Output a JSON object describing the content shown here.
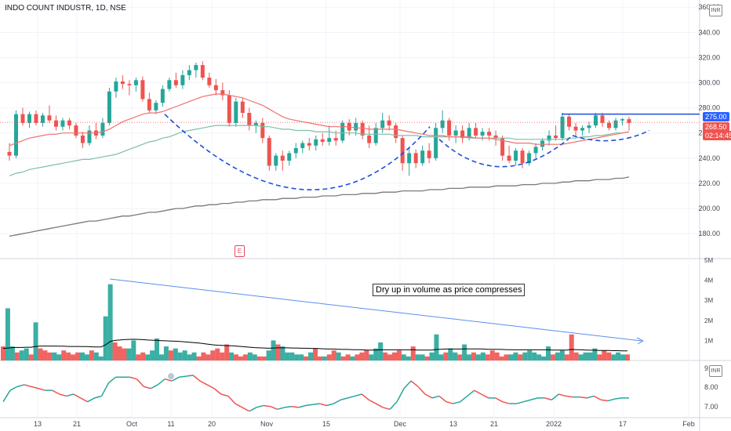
{
  "header": {
    "symbol_line": "INDO COUNT INDUSTR, 1D, NSE"
  },
  "currency_tag": "INR",
  "events": {
    "earnings_badge": "E"
  },
  "annotations": {
    "volume_note": "Dry up in volume as price compresses"
  },
  "price_tags": {
    "resistance": "275.00",
    "last_price": "268.50",
    "countdown": "02:14:45"
  },
  "colors": {
    "up": "#26a69a",
    "down": "#ef5350",
    "ma_short": "#f07171",
    "ma_mid": "#7cc0a6",
    "ma_long": "#7a7a7a",
    "pattern_line": "#1e4fd8",
    "resistance_line": "#1e4fd8",
    "volume_trend": "#5b8def",
    "indicator_line_up": "#26a69a",
    "indicator_line_down": "#ef5350",
    "axis_text": "#434651",
    "grid": "#f0f3fa"
  },
  "chart_data": {
    "type": "candlestick",
    "x_ticks": [
      "13",
      "21",
      "Oct",
      "11",
      "20",
      "Nov",
      "15",
      "Dec",
      "13",
      "21",
      "2022",
      "17",
      "Feb"
    ],
    "price_axis": {
      "ticks": [
        "360.00",
        "340.00",
        "320.00",
        "300.00",
        "280.00",
        "260.00",
        "240.00",
        "220.00",
        "200.00",
        "180.00"
      ],
      "ylim": [
        172,
        362
      ]
    },
    "volume_axis": {
      "ticks": [
        "5M",
        "4M",
        "3M",
        "2M",
        "1M"
      ],
      "ylim": [
        0,
        5000000
      ]
    },
    "indicator_axis": {
      "ticks": [
        "9.",
        "8.00",
        "7.00"
      ],
      "ylim": [
        6.6,
        9.05
      ]
    },
    "resistance_level": 275.0,
    "last_price": 268.5,
    "candles": [
      {
        "o": 245,
        "h": 252,
        "l": 238,
        "c": 242
      },
      {
        "o": 242,
        "h": 278,
        "l": 240,
        "c": 275
      },
      {
        "o": 275,
        "h": 280,
        "l": 266,
        "c": 268
      },
      {
        "o": 268,
        "h": 277,
        "l": 264,
        "c": 275
      },
      {
        "o": 275,
        "h": 278,
        "l": 266,
        "c": 268
      },
      {
        "o": 268,
        "h": 276,
        "l": 265,
        "c": 274
      },
      {
        "o": 274,
        "h": 282,
        "l": 268,
        "c": 270
      },
      {
        "o": 270,
        "h": 274,
        "l": 262,
        "c": 265
      },
      {
        "o": 265,
        "h": 272,
        "l": 262,
        "c": 270
      },
      {
        "o": 270,
        "h": 272,
        "l": 263,
        "c": 266
      },
      {
        "o": 266,
        "h": 268,
        "l": 256,
        "c": 258
      },
      {
        "o": 258,
        "h": 261,
        "l": 248,
        "c": 252
      },
      {
        "o": 252,
        "h": 266,
        "l": 250,
        "c": 262
      },
      {
        "o": 262,
        "h": 268,
        "l": 255,
        "c": 258
      },
      {
        "o": 258,
        "h": 272,
        "l": 256,
        "c": 268
      },
      {
        "o": 268,
        "h": 296,
        "l": 266,
        "c": 293
      },
      {
        "o": 293,
        "h": 304,
        "l": 288,
        "c": 301
      },
      {
        "o": 301,
        "h": 306,
        "l": 295,
        "c": 299
      },
      {
        "o": 299,
        "h": 302,
        "l": 290,
        "c": 298
      },
      {
        "o": 298,
        "h": 304,
        "l": 293,
        "c": 302
      },
      {
        "o": 302,
        "h": 305,
        "l": 285,
        "c": 287
      },
      {
        "o": 287,
        "h": 292,
        "l": 276,
        "c": 278
      },
      {
        "o": 278,
        "h": 286,
        "l": 275,
        "c": 284
      },
      {
        "o": 284,
        "h": 298,
        "l": 281,
        "c": 295
      },
      {
        "o": 295,
        "h": 304,
        "l": 293,
        "c": 302
      },
      {
        "o": 302,
        "h": 308,
        "l": 296,
        "c": 298
      },
      {
        "o": 298,
        "h": 310,
        "l": 295,
        "c": 306
      },
      {
        "o": 306,
        "h": 314,
        "l": 302,
        "c": 310
      },
      {
        "o": 310,
        "h": 316,
        "l": 304,
        "c": 314
      },
      {
        "o": 314,
        "h": 317,
        "l": 302,
        "c": 304
      },
      {
        "o": 304,
        "h": 308,
        "l": 296,
        "c": 298
      },
      {
        "o": 298,
        "h": 303,
        "l": 290,
        "c": 294
      },
      {
        "o": 294,
        "h": 300,
        "l": 286,
        "c": 290
      },
      {
        "o": 290,
        "h": 294,
        "l": 265,
        "c": 268
      },
      {
        "o": 268,
        "h": 288,
        "l": 265,
        "c": 285
      },
      {
        "o": 285,
        "h": 288,
        "l": 272,
        "c": 276
      },
      {
        "o": 276,
        "h": 280,
        "l": 262,
        "c": 266
      },
      {
        "o": 266,
        "h": 270,
        "l": 260,
        "c": 268
      },
      {
        "o": 268,
        "h": 272,
        "l": 252,
        "c": 256
      },
      {
        "o": 256,
        "h": 258,
        "l": 230,
        "c": 234
      },
      {
        "o": 234,
        "h": 244,
        "l": 230,
        "c": 242
      },
      {
        "o": 242,
        "h": 246,
        "l": 230,
        "c": 238
      },
      {
        "o": 238,
        "h": 246,
        "l": 234,
        "c": 244
      },
      {
        "o": 244,
        "h": 252,
        "l": 240,
        "c": 248
      },
      {
        "o": 248,
        "h": 254,
        "l": 244,
        "c": 252
      },
      {
        "o": 252,
        "h": 256,
        "l": 246,
        "c": 250
      },
      {
        "o": 250,
        "h": 258,
        "l": 246,
        "c": 255
      },
      {
        "o": 255,
        "h": 260,
        "l": 250,
        "c": 253
      },
      {
        "o": 253,
        "h": 266,
        "l": 250,
        "c": 256
      },
      {
        "o": 256,
        "h": 262,
        "l": 250,
        "c": 254
      },
      {
        "o": 254,
        "h": 270,
        "l": 252,
        "c": 268
      },
      {
        "o": 268,
        "h": 271,
        "l": 258,
        "c": 262
      },
      {
        "o": 262,
        "h": 272,
        "l": 258,
        "c": 268
      },
      {
        "o": 268,
        "h": 270,
        "l": 255,
        "c": 258
      },
      {
        "o": 258,
        "h": 266,
        "l": 248,
        "c": 252
      },
      {
        "o": 252,
        "h": 268,
        "l": 250,
        "c": 264
      },
      {
        "o": 264,
        "h": 276,
        "l": 260,
        "c": 270
      },
      {
        "o": 270,
        "h": 274,
        "l": 262,
        "c": 266
      },
      {
        "o": 266,
        "h": 268,
        "l": 252,
        "c": 256
      },
      {
        "o": 256,
        "h": 258,
        "l": 230,
        "c": 236
      },
      {
        "o": 236,
        "h": 248,
        "l": 226,
        "c": 244
      },
      {
        "o": 244,
        "h": 247,
        "l": 232,
        "c": 236
      },
      {
        "o": 236,
        "h": 250,
        "l": 234,
        "c": 246
      },
      {
        "o": 246,
        "h": 252,
        "l": 236,
        "c": 240
      },
      {
        "o": 240,
        "h": 268,
        "l": 238,
        "c": 264
      },
      {
        "o": 264,
        "h": 278,
        "l": 260,
        "c": 270
      },
      {
        "o": 270,
        "h": 272,
        "l": 254,
        "c": 258
      },
      {
        "o": 258,
        "h": 266,
        "l": 252,
        "c": 262
      },
      {
        "o": 262,
        "h": 266,
        "l": 252,
        "c": 256
      },
      {
        "o": 256,
        "h": 268,
        "l": 254,
        "c": 264
      },
      {
        "o": 264,
        "h": 268,
        "l": 256,
        "c": 258
      },
      {
        "o": 258,
        "h": 264,
        "l": 254,
        "c": 261
      },
      {
        "o": 261,
        "h": 264,
        "l": 254,
        "c": 258
      },
      {
        "o": 258,
        "h": 262,
        "l": 250,
        "c": 256
      },
      {
        "o": 256,
        "h": 258,
        "l": 238,
        "c": 242
      },
      {
        "o": 242,
        "h": 250,
        "l": 236,
        "c": 238
      },
      {
        "o": 238,
        "h": 248,
        "l": 234,
        "c": 246
      },
      {
        "o": 246,
        "h": 248,
        "l": 232,
        "c": 236
      },
      {
        "o": 236,
        "h": 246,
        "l": 234,
        "c": 244
      },
      {
        "o": 244,
        "h": 252,
        "l": 240,
        "c": 249
      },
      {
        "o": 249,
        "h": 256,
        "l": 246,
        "c": 254
      },
      {
        "o": 254,
        "h": 262,
        "l": 250,
        "c": 258
      },
      {
        "o": 258,
        "h": 266,
        "l": 254,
        "c": 256
      },
      {
        "o": 256,
        "h": 276,
        "l": 254,
        "c": 273
      },
      {
        "o": 273,
        "h": 275,
        "l": 262,
        "c": 265
      },
      {
        "o": 265,
        "h": 268,
        "l": 258,
        "c": 262
      },
      {
        "o": 262,
        "h": 266,
        "l": 258,
        "c": 264
      },
      {
        "o": 264,
        "h": 269,
        "l": 260,
        "c": 266
      },
      {
        "o": 266,
        "h": 276,
        "l": 264,
        "c": 274
      },
      {
        "o": 274,
        "h": 276,
        "l": 265,
        "c": 268
      },
      {
        "o": 268,
        "h": 270,
        "l": 262,
        "c": 264
      },
      {
        "o": 264,
        "h": 272,
        "l": 262,
        "c": 270
      },
      {
        "o": 270,
        "h": 272,
        "l": 266,
        "c": 271
      },
      {
        "o": 271,
        "h": 273,
        "l": 262,
        "c": 268
      }
    ],
    "ma_short": [
      250,
      252,
      254,
      256,
      257,
      258,
      259,
      259,
      260,
      260,
      260,
      260,
      260,
      260,
      261,
      263,
      266,
      269,
      271,
      273,
      275,
      276,
      276,
      277,
      279,
      281,
      283,
      285,
      287,
      289,
      290,
      291,
      291,
      290,
      289,
      288,
      286,
      284,
      282,
      279,
      276,
      273,
      271,
      270,
      269,
      268,
      267,
      266,
      265,
      265,
      265,
      265,
      264,
      264,
      263,
      263,
      263,
      263,
      263,
      262,
      261,
      260,
      259,
      258,
      258,
      258,
      257,
      257,
      257,
      257,
      256,
      256,
      256,
      255,
      254,
      253,
      252,
      252,
      252,
      251,
      251,
      251,
      251,
      251,
      252,
      253,
      254,
      255,
      256,
      257,
      258,
      259,
      260,
      261
    ],
    "ma_mid": [
      226,
      228,
      229,
      231,
      232,
      233,
      234,
      235,
      236,
      237,
      238,
      239,
      239,
      240,
      241,
      242,
      243,
      245,
      247,
      249,
      251,
      253,
      254,
      256,
      257,
      259,
      261,
      262,
      263,
      264,
      265,
      266,
      266,
      266,
      266,
      266,
      266,
      266,
      265,
      265,
      264,
      263,
      263,
      262,
      262,
      262,
      261,
      261,
      261,
      260,
      260,
      260,
      260,
      259,
      259,
      259,
      259,
      259,
      258,
      258,
      258,
      258,
      257,
      257,
      257,
      257,
      257,
      257,
      257,
      256,
      256,
      256,
      256,
      256,
      256,
      256,
      255,
      255,
      255,
      255,
      255,
      255,
      255,
      255,
      256,
      256,
      257,
      257,
      258,
      258,
      259,
      260,
      260,
      261
    ],
    "ma_long": [
      178,
      179,
      180,
      181,
      182,
      183,
      184,
      185,
      186,
      187,
      188,
      189,
      190,
      190,
      191,
      192,
      193,
      194,
      194,
      195,
      196,
      197,
      197,
      198,
      199,
      200,
      200,
      201,
      202,
      202,
      203,
      203,
      204,
      204,
      205,
      205,
      206,
      206,
      207,
      207,
      207,
      208,
      208,
      208,
      209,
      209,
      209,
      210,
      210,
      210,
      211,
      211,
      211,
      212,
      212,
      212,
      213,
      213,
      213,
      214,
      214,
      214,
      214,
      215,
      215,
      215,
      216,
      216,
      216,
      217,
      217,
      217,
      217,
      218,
      218,
      218,
      218,
      219,
      219,
      219,
      220,
      220,
      220,
      221,
      221,
      222,
      222,
      222,
      223,
      223,
      223,
      224,
      224,
      225
    ],
    "volumes": [
      0.7,
      2.6,
      0.7,
      0.4,
      0.5,
      0.6,
      0.3,
      1.9,
      0.6,
      0.5,
      0.4,
      0.4,
      0.3,
      0.5,
      0.4,
      0.3,
      0.4,
      0.4,
      0.3,
      0.5,
      0.4,
      0.2,
      2.2,
      3.8,
      0.9,
      0.7,
      0.6,
      0.6,
      1.0,
      0.3,
      0.4,
      0.3,
      0.5,
      1.1,
      0.3,
      0.7,
      0.5,
      0.6,
      0.4,
      0.5,
      0.3,
      0.4,
      0.2,
      0.4,
      0.3,
      0.5,
      0.6,
      0.4,
      0.8,
      0.4,
      0.3,
      0.2,
      0.3,
      0.4,
      0.3,
      0.2,
      0.2,
      0.5,
      1.0,
      0.8,
      0.7,
      0.4,
      0.4,
      0.3,
      0.3,
      0.2,
      0.4,
      0.6,
      0.2,
      0.2,
      0.3,
      0.5,
      0.4,
      0.2,
      0.3,
      0.2,
      0.3,
      0.4,
      0.5,
      0.3,
      0.6,
      0.9,
      0.4,
      0.3,
      0.4,
      0.5,
      0.3,
      0.2,
      0.7,
      0.3,
      0.3,
      0.2,
      0.4,
      1.3,
      0.3,
      0.4,
      0.6,
      0.4,
      0.3,
      0.8,
      0.3,
      0.4,
      0.3,
      0.4,
      0.3,
      0.5,
      0.4,
      0.2,
      0.3,
      0.3,
      0.4,
      0.3,
      0.4,
      0.5,
      0.4,
      0.3,
      0.2,
      0.7,
      0.3,
      0.4,
      0.5,
      0.3,
      1.3,
      0.4,
      0.3,
      0.4,
      0.4,
      0.6,
      0.3,
      0.5,
      0.4,
      0.3,
      0.4,
      0.3,
      0.3
    ],
    "volume_ma": [
      0.6,
      0.62,
      0.64,
      0.65,
      0.65,
      0.66,
      0.66,
      0.7,
      0.72,
      0.72,
      0.72,
      0.72,
      0.71,
      0.71,
      0.7,
      0.7,
      0.7,
      0.69,
      0.69,
      0.68,
      0.67,
      0.67,
      0.78,
      0.95,
      1.0,
      1.02,
      1.04,
      1.05,
      1.06,
      1.05,
      1.04,
      1.02,
      1.01,
      1.0,
      0.99,
      0.98,
      0.97,
      0.96,
      0.95,
      0.93,
      0.91,
      0.89,
      0.87,
      0.84,
      0.81,
      0.78,
      0.76,
      0.75,
      0.74,
      0.73,
      0.72,
      0.7,
      0.68,
      0.66,
      0.64,
      0.63,
      0.62,
      0.61,
      0.62,
      0.63,
      0.63,
      0.63,
      0.62,
      0.62,
      0.61,
      0.61,
      0.6,
      0.6,
      0.59,
      0.58,
      0.57,
      0.57,
      0.56,
      0.55,
      0.55,
      0.54,
      0.54,
      0.53,
      0.52,
      0.52,
      0.52,
      0.53,
      0.53,
      0.53,
      0.53,
      0.53,
      0.53,
      0.53,
      0.53,
      0.52,
      0.52,
      0.52,
      0.52,
      0.55,
      0.56,
      0.57,
      0.57,
      0.57,
      0.57,
      0.58,
      0.58,
      0.58,
      0.58,
      0.57,
      0.56,
      0.56,
      0.55,
      0.55,
      0.54,
      0.54,
      0.53,
      0.53,
      0.53,
      0.53,
      0.53,
      0.53,
      0.53,
      0.53,
      0.52,
      0.52,
      0.52,
      0.52,
      0.55,
      0.54,
      0.53,
      0.52,
      0.51,
      0.51,
      0.5,
      0.5,
      0.5,
      0.49,
      0.49,
      0.48,
      0.48
    ],
    "indicator": [
      7.2,
      7.8,
      8.0,
      8.1,
      8.0,
      7.9,
      7.8,
      7.8,
      7.6,
      7.5,
      7.6,
      7.4,
      7.2,
      7.4,
      7.5,
      8.2,
      8.5,
      8.5,
      8.5,
      8.4,
      8.0,
      7.9,
      8.1,
      8.4,
      8.3,
      8.5,
      8.55,
      8.6,
      8.3,
      8.1,
      7.9,
      7.6,
      7.5,
      7.1,
      6.9,
      6.7,
      6.9,
      7.0,
      6.95,
      6.8,
      6.9,
      6.95,
      6.9,
      7.0,
      7.05,
      7.1,
      7.0,
      7.1,
      7.3,
      7.4,
      7.5,
      7.6,
      7.3,
      7.1,
      6.9,
      6.8,
      7.2,
      7.9,
      8.3,
      8.0,
      7.6,
      7.4,
      7.5,
      7.2,
      7.1,
      7.2,
      7.5,
      7.8,
      7.6,
      7.4,
      7.4,
      7.2,
      7.1,
      7.1,
      7.2,
      7.3,
      7.4,
      7.4,
      7.3,
      7.6,
      7.5,
      7.45,
      7.45,
      7.4,
      7.5,
      7.3,
      7.25,
      7.35,
      7.4,
      7.4
    ]
  }
}
